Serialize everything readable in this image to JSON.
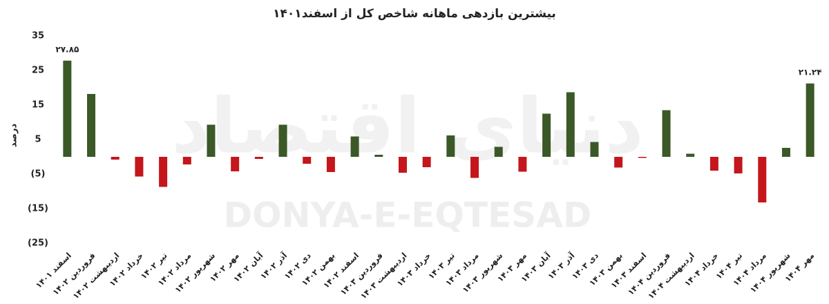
{
  "chart_data": {
    "type": "bar",
    "title": "بیشترین بازدهی ماهانه شاخص کل از اسفند۱۴۰۱",
    "y_label": "درصد",
    "watermark": "DONYA-E-EQTESAD",
    "watermark_fa": "دنیای اقتصاد",
    "categories": [
      "اسفند ۱۴۰۱",
      "فروردین ۱۴۰۲",
      "اردیبهشت ۱۴۰۲",
      "خرداد ۱۴۰۲",
      "تیر ۱۴۰۲",
      "مرداد ۱۴۰۲",
      "شهریور ۱۴۰۲",
      "مهر ۱۴۰۲",
      "آبان ۱۴۰۲",
      "آذر ۱۴۰۲",
      "دی ۱۴۰۲",
      "بهمن ۱۴۰۲",
      "اسفند ۱۴۰۲",
      "فروردین ۱۴۰۳",
      "اردیبهشت ۱۴۰۳",
      "خرداد ۱۴۰۳",
      "تیر ۱۴۰۳",
      "مرداد ۱۴۰۳",
      "شهریور ۱۴۰۳",
      "مهر ۱۴۰۳",
      "آبان ۱۴۰۳",
      "آذر ۱۴۰۳",
      "دی ۱۴۰۳",
      "بهمن ۱۴۰۳",
      "اسفند ۱۴۰۳",
      "فروردین ۱۴۰۴",
      "اردیبهشت ۱۴۰۴",
      "خرداد ۱۴۰۴",
      "تیر ۱۴۰۴",
      "مرداد ۱۴۰۴",
      "شهریور ۱۴۰۴",
      "مهر ۱۴۰۴"
    ],
    "values": [
      27.85,
      18.2,
      -0.8,
      -5.7,
      -8.7,
      -2.2,
      9.3,
      -4.2,
      -0.6,
      9.3,
      -2.0,
      -4.4,
      5.9,
      0.6,
      -4.6,
      -3.0,
      6.2,
      -6.1,
      2.9,
      -4.3,
      12.5,
      18.7,
      4.3,
      -3.1,
      -0.3,
      13.5,
      0.9,
      -4.0,
      -4.8,
      -13.2,
      2.6,
      21.24
    ],
    "value_labels": [
      "۲۷.۸۵",
      null,
      null,
      null,
      null,
      null,
      null,
      null,
      null,
      null,
      null,
      null,
      null,
      null,
      null,
      null,
      null,
      null,
      null,
      null,
      null,
      null,
      null,
      null,
      null,
      null,
      null,
      null,
      null,
      null,
      null,
      "۲۱.۲۴"
    ],
    "colors": {
      "positive": "#3b5827",
      "negative": "#c4161c"
    },
    "ylim": [
      -25,
      35
    ],
    "yticks": [
      {
        "value": -25,
        "label": "(25)"
      },
      {
        "value": -15,
        "label": "(15)"
      },
      {
        "value": -5,
        "label": "(5)"
      },
      5,
      15,
      25,
      35
    ]
  }
}
